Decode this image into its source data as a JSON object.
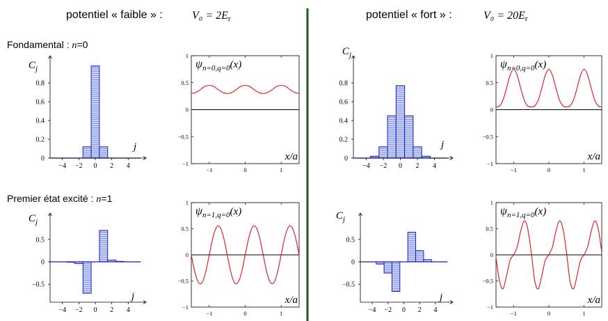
{
  "header": {
    "left": {
      "text": "potentiel « faible » :",
      "formula": "V₀ = 2E",
      "sub": "r"
    },
    "right": {
      "text": "potentiel « fort » :",
      "formula": "V₀ = 20E",
      "sub": "r"
    }
  },
  "row_labels": [
    {
      "text": "Fondamental : ",
      "var": "n",
      "value": "=0"
    },
    {
      "text": "Premier état excité : ",
      "var": "n",
      "value": "=1"
    }
  ],
  "colors": {
    "bar_fill": "#c4cdf2",
    "bar_stroke": "#1c1cc8",
    "wave": "#e01010",
    "divider": "#1f5a1f",
    "axis": "#000000"
  },
  "chart_data": [
    {
      "id": "bar-weak-n0",
      "type": "bar",
      "panel": "weak n=0",
      "ylabel": "C",
      "ylabel_sub": "j",
      "xlabel": "j",
      "ylim": [
        0,
        1
      ],
      "xlim": [
        -5.5,
        5.5
      ],
      "yticks": [
        {
          "v": 0,
          "label": "0"
        },
        {
          "v": 0.2,
          "label": "0.2"
        },
        {
          "v": 0.4,
          "label": "0.4"
        },
        {
          "v": 0.6,
          "label": "0.6"
        },
        {
          "v": 0.8,
          "label": "0.8"
        }
      ],
      "xticks": [
        {
          "v": -4,
          "label": "−4"
        },
        {
          "v": -2,
          "label": "−2"
        },
        {
          "v": 0,
          "label": "0"
        },
        {
          "v": 2,
          "label": "2"
        },
        {
          "v": 4,
          "label": "4"
        }
      ],
      "x": [
        -5,
        -4,
        -3,
        -2,
        -1,
        0,
        1,
        2,
        3,
        4,
        5
      ],
      "values": [
        0,
        0,
        0,
        0,
        0.12,
        0.98,
        0.12,
        0,
        0,
        0,
        0
      ]
    },
    {
      "id": "wave-weak-n0",
      "type": "line",
      "panel": "weak n=0",
      "title": "ψ",
      "title_sub": "n=0,q=0",
      "title_arg": "(x)",
      "xlabel": "x/a",
      "xlim": [
        -1.5,
        1.5
      ],
      "ylim": [
        -1,
        1
      ],
      "yticks": [
        {
          "v": -1,
          "label": "−1"
        },
        {
          "v": -0.5,
          "label": "−0.5"
        },
        {
          "v": 0,
          "label": "0"
        },
        {
          "v": 0.5,
          "label": "0.5"
        },
        {
          "v": 1,
          "label": "1"
        }
      ],
      "xticks": [
        {
          "v": -1,
          "label": "−1"
        },
        {
          "v": 0,
          "label": "0"
        },
        {
          "v": 1,
          "label": "1"
        }
      ],
      "x": [
        -1.5,
        -1.375,
        -1.25,
        -1.125,
        -1.0,
        -0.875,
        -0.75,
        -0.625,
        -0.5,
        -0.375,
        -0.25,
        -0.125,
        0.0,
        0.125,
        0.25,
        0.375,
        0.5,
        0.625,
        0.75,
        0.875,
        1.0,
        1.125,
        1.25,
        1.375,
        1.5
      ],
      "y": [
        0.3,
        0.32,
        0.37,
        0.43,
        0.45,
        0.43,
        0.37,
        0.32,
        0.3,
        0.32,
        0.37,
        0.43,
        0.45,
        0.43,
        0.37,
        0.32,
        0.3,
        0.32,
        0.37,
        0.43,
        0.45,
        0.43,
        0.37,
        0.32,
        0.3
      ]
    },
    {
      "id": "bar-strong-n0",
      "type": "bar",
      "panel": "strong n=0",
      "ylabel": "C",
      "ylabel_sub": "j",
      "xlabel": "j",
      "ylim": [
        0,
        1
      ],
      "xlim": [
        -5.5,
        5.5
      ],
      "yticks": [
        {
          "v": 0,
          "label": "0"
        },
        {
          "v": 0.2,
          "label": "0.2"
        },
        {
          "v": 0.4,
          "label": "0.4"
        },
        {
          "v": 0.6,
          "label": "0.6"
        },
        {
          "v": 0.8,
          "label": "0.8"
        }
      ],
      "xticks": [
        {
          "v": -4,
          "label": "−4"
        },
        {
          "v": -2,
          "label": "−2"
        },
        {
          "v": 0,
          "label": "0"
        },
        {
          "v": 2,
          "label": "2"
        },
        {
          "v": 4,
          "label": "4"
        }
      ],
      "x": [
        -5,
        -4,
        -3,
        -2,
        -1,
        0,
        1,
        2,
        3,
        4,
        5
      ],
      "values": [
        0,
        0,
        0.02,
        0.12,
        0.45,
        0.77,
        0.45,
        0.12,
        0.02,
        0,
        0
      ]
    },
    {
      "id": "wave-strong-n0",
      "type": "line",
      "panel": "strong n=0",
      "title": "ψ",
      "title_sub": "n=0,q=0",
      "title_arg": "(x)",
      "xlabel": "x/a",
      "xlim": [
        -1.5,
        1.5
      ],
      "ylim": [
        -1,
        1
      ],
      "yticks": [
        {
          "v": -1,
          "label": "−1"
        },
        {
          "v": -0.5,
          "label": "−0.5"
        },
        {
          "v": 0,
          "label": "0"
        },
        {
          "v": 0.5,
          "label": "0.5"
        },
        {
          "v": 1,
          "label": "1"
        }
      ],
      "xticks": [
        {
          "v": -1,
          "label": "−1"
        },
        {
          "v": 0,
          "label": "0"
        },
        {
          "v": 1,
          "label": "1"
        }
      ],
      "x": [
        -1.5,
        -1.4,
        -1.3,
        -1.2,
        -1.1,
        -1.0,
        -0.9,
        -0.8,
        -0.7,
        -0.6,
        -0.5,
        -0.4,
        -0.3,
        -0.2,
        -0.1,
        0.0,
        0.1,
        0.2,
        0.3,
        0.4,
        0.5,
        0.6,
        0.7,
        0.8,
        0.9,
        1.0,
        1.1,
        1.2,
        1.3,
        1.4,
        1.5
      ],
      "y": [
        0.05,
        0.07,
        0.18,
        0.4,
        0.64,
        0.75,
        0.64,
        0.4,
        0.18,
        0.07,
        0.05,
        0.07,
        0.18,
        0.4,
        0.64,
        0.75,
        0.64,
        0.4,
        0.18,
        0.07,
        0.05,
        0.07,
        0.18,
        0.4,
        0.64,
        0.75,
        0.64,
        0.4,
        0.18,
        0.07,
        0.05
      ]
    },
    {
      "id": "bar-weak-n1",
      "type": "bar",
      "panel": "weak n=1",
      "ylabel": "C",
      "ylabel_sub": "j",
      "xlabel": "j",
      "ylim": [
        -0.9,
        0.9
      ],
      "xlim": [
        -5.5,
        5.5
      ],
      "yticks": [
        {
          "v": -0.5,
          "label": "−0.5"
        },
        {
          "v": 0,
          "label": "0"
        },
        {
          "v": 0.5,
          "label": "0.5"
        }
      ],
      "xticks": [
        {
          "v": -4,
          "label": "−4"
        },
        {
          "v": -2,
          "label": "−2"
        },
        {
          "v": 0,
          "label": "0"
        },
        {
          "v": 2,
          "label": "2"
        },
        {
          "v": 4,
          "label": "4"
        }
      ],
      "x": [
        -5,
        -4,
        -3,
        -2,
        -1,
        0,
        1,
        2,
        3,
        4,
        5
      ],
      "values": [
        0,
        0,
        -0.01,
        -0.04,
        -0.7,
        0,
        0.7,
        0.04,
        0.01,
        0,
        0
      ]
    },
    {
      "id": "wave-weak-n1",
      "type": "line",
      "panel": "weak n=1",
      "title": "ψ",
      "title_sub": "n=1,q=0",
      "title_arg": "(x)",
      "xlabel": "x/a",
      "xlim": [
        -1.5,
        1.5
      ],
      "ylim": [
        -1,
        1
      ],
      "yticks": [
        {
          "v": -1,
          "label": "−1"
        },
        {
          "v": -0.5,
          "label": "−0.5"
        },
        {
          "v": 0,
          "label": "0"
        },
        {
          "v": 0.5,
          "label": "0.5"
        },
        {
          "v": 1,
          "label": "1"
        }
      ],
      "xticks": [
        {
          "v": -1,
          "label": "−1"
        },
        {
          "v": 0,
          "label": "0"
        },
        {
          "v": 1,
          "label": "1"
        }
      ],
      "x": [
        -1.5,
        -1.4,
        -1.3,
        -1.2,
        -1.1,
        -1.0,
        -0.9,
        -0.8,
        -0.7,
        -0.6,
        -0.5,
        -0.4,
        -0.3,
        -0.2,
        -0.1,
        0.0,
        0.1,
        0.2,
        0.3,
        0.4,
        0.5,
        0.6,
        0.7,
        0.8,
        0.9,
        1.0,
        1.1,
        1.2,
        1.3,
        1.4,
        1.5
      ],
      "y": [
        0.0,
        -0.33,
        -0.53,
        -0.53,
        -0.33,
        0.0,
        0.33,
        0.53,
        0.53,
        0.33,
        0.0,
        -0.33,
        -0.53,
        -0.53,
        -0.33,
        0.0,
        0.33,
        0.53,
        0.53,
        0.33,
        0.0,
        -0.33,
        -0.53,
        -0.53,
        -0.33,
        0.0,
        0.33,
        0.53,
        0.53,
        0.33,
        0.0
      ]
    },
    {
      "id": "bar-strong-n1",
      "type": "bar",
      "panel": "strong n=1",
      "ylabel": "C",
      "ylabel_sub": "j",
      "xlabel": "j",
      "ylim": [
        -0.9,
        0.9
      ],
      "xlim": [
        -5.5,
        5.5
      ],
      "yticks": [
        {
          "v": -0.5,
          "label": "−0.5"
        },
        {
          "v": 0,
          "label": "0"
        },
        {
          "v": 0.5,
          "label": "0.5"
        }
      ],
      "xticks": [
        {
          "v": -4,
          "label": "−4"
        },
        {
          "v": -2,
          "label": "−2"
        },
        {
          "v": 0,
          "label": "0"
        },
        {
          "v": 2,
          "label": "2"
        },
        {
          "v": 4,
          "label": "4"
        }
      ],
      "x": [
        -5,
        -4,
        -3,
        -2,
        -1,
        0,
        1,
        2,
        3,
        4,
        5
      ],
      "values": [
        0,
        0,
        -0.05,
        -0.25,
        -0.66,
        0,
        0.66,
        0.25,
        0.05,
        0,
        0
      ]
    },
    {
      "id": "wave-strong-n1",
      "type": "line",
      "panel": "strong n=1",
      "title": "ψ",
      "title_sub": "n=1,q=0",
      "title_arg": "(x)",
      "xlabel": "x/a",
      "xlim": [
        -1.5,
        1.5
      ],
      "ylim": [
        -1,
        1
      ],
      "yticks": [
        {
          "v": -1,
          "label": "−1"
        },
        {
          "v": -0.5,
          "label": "−0.5"
        },
        {
          "v": 0,
          "label": "0"
        },
        {
          "v": 0.5,
          "label": "0.5"
        },
        {
          "v": 1,
          "label": "1"
        }
      ],
      "xticks": [
        {
          "v": -1,
          "label": "−1"
        },
        {
          "v": 0,
          "label": "0"
        },
        {
          "v": 1,
          "label": "1"
        }
      ],
      "x": [
        -1.5,
        -1.4,
        -1.3,
        -1.2,
        -1.1,
        -1.0,
        -0.9,
        -0.8,
        -0.7,
        -0.6,
        -0.5,
        -0.4,
        -0.3,
        -0.2,
        -0.1,
        0.0,
        0.1,
        0.2,
        0.3,
        0.4,
        0.5,
        0.6,
        0.7,
        0.8,
        0.9,
        1.0,
        1.1,
        1.2,
        1.3,
        1.4,
        1.5
      ],
      "y": [
        -0.05,
        -0.5,
        -0.65,
        -0.4,
        -0.1,
        0.0,
        0.15,
        0.45,
        0.65,
        0.5,
        0.05,
        -0.5,
        -0.65,
        -0.4,
        -0.1,
        0.0,
        0.15,
        0.45,
        0.65,
        0.5,
        0.05,
        -0.5,
        -0.65,
        -0.4,
        -0.1,
        0.0,
        0.15,
        0.45,
        0.65,
        0.5,
        0.05
      ]
    }
  ]
}
